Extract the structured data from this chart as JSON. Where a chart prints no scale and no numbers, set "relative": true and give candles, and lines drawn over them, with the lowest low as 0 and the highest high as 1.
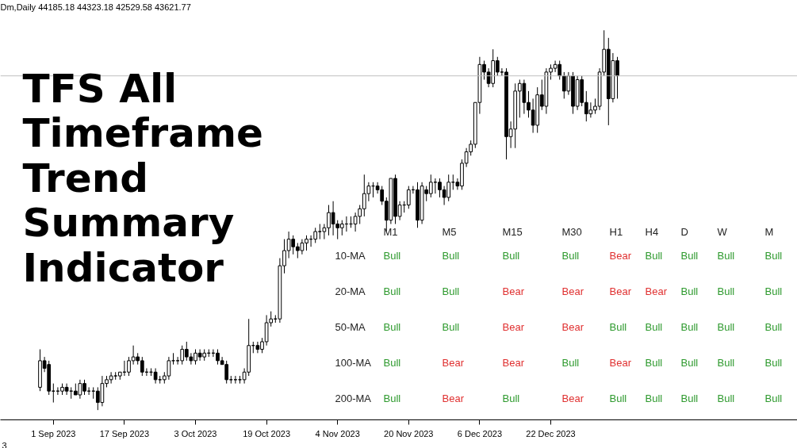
{
  "chart_data": [
    {
      "type": "candlestick",
      "title": "TFS All Timeframe Trend Summary Indicator",
      "relative": true,
      "grid": false,
      "annotations": [
        "Dm,Daily 44185.18 44323.18 42529.58 43621.77",
        "3"
      ],
      "ref_lines": [
        {
          "axis": "y",
          "value": 0.88,
          "color": "#c0c0c0"
        }
      ],
      "categories": [
        null,
        null,
        null,
        "1 Sep 2023",
        null,
        null,
        null,
        null,
        null,
        null,
        null,
        null,
        null,
        null,
        null,
        null,
        null,
        null,
        null,
        "17 Sep 2023",
        null,
        null,
        null,
        null,
        null,
        null,
        null,
        null,
        null,
        null,
        null,
        null,
        null,
        null,
        null,
        "3 Oct 2023",
        null,
        null,
        null,
        null,
        null,
        null,
        null,
        null,
        null,
        null,
        null,
        null,
        null,
        null,
        null,
        "19 Oct 2023",
        null,
        null,
        null,
        null,
        null,
        null,
        null,
        null,
        null,
        null,
        null,
        null,
        null,
        null,
        null,
        "4 Nov 2023",
        null,
        null,
        null,
        null,
        null,
        null,
        null,
        null,
        null,
        null,
        null,
        null,
        null,
        null,
        null,
        "20 Nov 2023",
        null,
        null,
        null,
        null,
        null,
        null,
        null,
        null,
        null,
        null,
        null,
        null,
        null,
        null,
        null,
        "6 Dec 2023",
        null,
        null,
        null,
        null,
        null,
        null,
        null,
        null,
        null,
        null,
        null,
        null,
        null,
        null,
        null,
        "22 Dec 2023",
        null,
        null,
        null,
        null,
        null,
        null,
        null,
        null,
        null,
        null,
        null,
        null,
        null,
        null,
        null
      ],
      "ohlc": [
        [
          0.06,
          0.16,
          0.05,
          0.13
        ],
        [
          0.13,
          0.14,
          0.1,
          0.11
        ],
        [
          0.12,
          0.13,
          0.04,
          0.05
        ],
        [
          0.05,
          0.07,
          0.02,
          0.05
        ],
        [
          0.05,
          0.06,
          0.04,
          0.05
        ],
        [
          0.05,
          0.07,
          0.04,
          0.06
        ],
        [
          0.06,
          0.07,
          0.04,
          0.05
        ],
        [
          0.05,
          0.06,
          0.03,
          0.05
        ],
        [
          0.05,
          0.07,
          0.04,
          0.04
        ],
        [
          0.04,
          0.08,
          0.03,
          0.07
        ],
        [
          0.07,
          0.08,
          0.04,
          0.05
        ],
        [
          0.05,
          0.06,
          0.04,
          0.05
        ],
        [
          0.05,
          0.06,
          0.03,
          0.05
        ],
        [
          0.05,
          0.06,
          0.0,
          0.02
        ],
        [
          0.02,
          0.09,
          0.01,
          0.07
        ],
        [
          0.07,
          0.09,
          0.06,
          0.08
        ],
        [
          0.08,
          0.1,
          0.07,
          0.09
        ],
        [
          0.09,
          0.1,
          0.08,
          0.09
        ],
        [
          0.09,
          0.1,
          0.08,
          0.1
        ],
        [
          0.1,
          0.13,
          0.09,
          0.1
        ],
        [
          0.1,
          0.14,
          0.09,
          0.13
        ],
        [
          0.13,
          0.17,
          0.12,
          0.14
        ],
        [
          0.14,
          0.15,
          0.12,
          0.13
        ],
        [
          0.13,
          0.14,
          0.09,
          0.1
        ],
        [
          0.1,
          0.11,
          0.09,
          0.1
        ],
        [
          0.1,
          0.11,
          0.09,
          0.1
        ],
        [
          0.1,
          0.11,
          0.07,
          0.08
        ],
        [
          0.08,
          0.09,
          0.07,
          0.08
        ],
        [
          0.08,
          0.1,
          0.07,
          0.09
        ],
        [
          0.09,
          0.14,
          0.08,
          0.13
        ],
        [
          0.13,
          0.15,
          0.12,
          0.13
        ],
        [
          0.13,
          0.14,
          0.12,
          0.13
        ],
        [
          0.13,
          0.17,
          0.12,
          0.16
        ],
        [
          0.16,
          0.18,
          0.13,
          0.14
        ],
        [
          0.14,
          0.15,
          0.12,
          0.13
        ],
        [
          0.13,
          0.16,
          0.12,
          0.15
        ],
        [
          0.15,
          0.16,
          0.13,
          0.14
        ],
        [
          0.14,
          0.16,
          0.13,
          0.15
        ],
        [
          0.15,
          0.16,
          0.14,
          0.15
        ],
        [
          0.15,
          0.16,
          0.14,
          0.15
        ],
        [
          0.15,
          0.16,
          0.12,
          0.13
        ],
        [
          0.13,
          0.14,
          0.12,
          0.12
        ],
        [
          0.12,
          0.13,
          0.07,
          0.08
        ],
        [
          0.08,
          0.09,
          0.07,
          0.08
        ],
        [
          0.08,
          0.09,
          0.07,
          0.08
        ],
        [
          0.08,
          0.09,
          0.07,
          0.08
        ],
        [
          0.08,
          0.11,
          0.07,
          0.1
        ],
        [
          0.1,
          0.24,
          0.09,
          0.17
        ],
        [
          0.17,
          0.18,
          0.15,
          0.17
        ],
        [
          0.17,
          0.18,
          0.15,
          0.16
        ],
        [
          0.16,
          0.19,
          0.15,
          0.18
        ],
        [
          0.18,
          0.25,
          0.17,
          0.23
        ],
        [
          0.23,
          0.26,
          0.22,
          0.24
        ],
        [
          0.24,
          0.25,
          0.23,
          0.24
        ],
        [
          0.24,
          0.4,
          0.23,
          0.38
        ],
        [
          0.38,
          0.45,
          0.36,
          0.42
        ],
        [
          0.42,
          0.47,
          0.4,
          0.45
        ],
        [
          0.45,
          0.46,
          0.41,
          0.43
        ],
        [
          0.43,
          0.44,
          0.4,
          0.42
        ],
        [
          0.42,
          0.45,
          0.41,
          0.44
        ],
        [
          0.44,
          0.46,
          0.42,
          0.45
        ],
        [
          0.45,
          0.46,
          0.43,
          0.45
        ],
        [
          0.45,
          0.48,
          0.44,
          0.47
        ],
        [
          0.47,
          0.49,
          0.45,
          0.47
        ],
        [
          0.47,
          0.49,
          0.45,
          0.48
        ],
        [
          0.48,
          0.54,
          0.46,
          0.52
        ],
        [
          0.52,
          0.55,
          0.46,
          0.49
        ],
        [
          0.49,
          0.5,
          0.45,
          0.48
        ],
        [
          0.48,
          0.5,
          0.46,
          0.49
        ],
        [
          0.49,
          0.51,
          0.47,
          0.49
        ],
        [
          0.49,
          0.51,
          0.48,
          0.49
        ],
        [
          0.49,
          0.52,
          0.47,
          0.51
        ],
        [
          0.51,
          0.54,
          0.49,
          0.53
        ],
        [
          0.53,
          0.62,
          0.51,
          0.57
        ],
        [
          0.57,
          0.6,
          0.55,
          0.59
        ],
        [
          0.59,
          0.6,
          0.56,
          0.59
        ],
        [
          0.59,
          0.6,
          0.57,
          0.58
        ],
        [
          0.58,
          0.59,
          0.54,
          0.55
        ],
        [
          0.55,
          0.56,
          0.47,
          0.5
        ],
        [
          0.5,
          0.61,
          0.49,
          0.61
        ],
        [
          0.61,
          0.62,
          0.49,
          0.51
        ],
        [
          0.51,
          0.55,
          0.5,
          0.54
        ],
        [
          0.54,
          0.55,
          0.52,
          0.54
        ],
        [
          0.54,
          0.59,
          0.53,
          0.58
        ],
        [
          0.58,
          0.59,
          0.57,
          0.58
        ],
        [
          0.58,
          0.6,
          0.48,
          0.5
        ],
        [
          0.5,
          0.6,
          0.49,
          0.59
        ],
        [
          0.58,
          0.59,
          0.55,
          0.57
        ],
        [
          0.57,
          0.62,
          0.56,
          0.6
        ],
        [
          0.6,
          0.61,
          0.57,
          0.6
        ],
        [
          0.6,
          0.61,
          0.56,
          0.58
        ],
        [
          0.58,
          0.59,
          0.54,
          0.56
        ],
        [
          0.56,
          0.62,
          0.55,
          0.6
        ],
        [
          0.6,
          0.62,
          0.58,
          0.6
        ],
        [
          0.6,
          0.61,
          0.58,
          0.59
        ],
        [
          0.59,
          0.66,
          0.58,
          0.65
        ],
        [
          0.65,
          0.69,
          0.64,
          0.68
        ],
        [
          0.68,
          0.71,
          0.67,
          0.7
        ],
        [
          0.7,
          0.81,
          0.69,
          0.81
        ],
        [
          0.81,
          0.93,
          0.78,
          0.91
        ],
        [
          0.91,
          0.92,
          0.87,
          0.89
        ],
        [
          0.89,
          0.9,
          0.85,
          0.86
        ],
        [
          0.86,
          0.95,
          0.85,
          0.92
        ],
        [
          0.92,
          0.93,
          0.88,
          0.89
        ],
        [
          0.89,
          0.9,
          0.88,
          0.89
        ],
        [
          0.89,
          0.9,
          0.66,
          0.72
        ],
        [
          0.72,
          0.76,
          0.69,
          0.74
        ],
        [
          0.74,
          0.86,
          0.69,
          0.84
        ],
        [
          0.84,
          0.87,
          0.77,
          0.86
        ],
        [
          0.86,
          0.87,
          0.78,
          0.81
        ],
        [
          0.81,
          0.84,
          0.77,
          0.79
        ],
        [
          0.79,
          0.82,
          0.73,
          0.75
        ],
        [
          0.75,
          0.85,
          0.73,
          0.83
        ],
        [
          0.83,
          0.87,
          0.79,
          0.8
        ],
        [
          0.8,
          0.9,
          0.78,
          0.89
        ],
        [
          0.89,
          0.91,
          0.87,
          0.9
        ],
        [
          0.9,
          0.92,
          0.89,
          0.91
        ],
        [
          0.91,
          0.92,
          0.87,
          0.88
        ],
        [
          0.88,
          0.89,
          0.82,
          0.84
        ],
        [
          0.84,
          0.89,
          0.83,
          0.88
        ],
        [
          0.88,
          0.89,
          0.78,
          0.8
        ],
        [
          0.8,
          0.88,
          0.79,
          0.87
        ],
        [
          0.87,
          0.88,
          0.8,
          0.81
        ],
        [
          0.81,
          0.84,
          0.76,
          0.78
        ],
        [
          0.78,
          0.81,
          0.77,
          0.79
        ],
        [
          0.79,
          0.82,
          0.78,
          0.8
        ],
        [
          0.8,
          0.9,
          0.79,
          0.89
        ],
        [
          0.89,
          1.0,
          0.88,
          0.95
        ],
        [
          0.95,
          0.98,
          0.75,
          0.82
        ],
        [
          0.82,
          0.94,
          0.81,
          0.92
        ],
        [
          0.92,
          0.93,
          0.82,
          0.88
        ]
      ]
    },
    {
      "type": "other",
      "categories": [
        "M1",
        "M5",
        "M15",
        "M30",
        "H1",
        "H4",
        "D",
        "W",
        "M"
      ],
      "y_categories": [
        "10-MA",
        "20-MA",
        "50-MA",
        "100-MA",
        "200-MA"
      ],
      "cell_labels": [
        [
          "Bull",
          "Bull",
          "Bull",
          "Bull",
          "Bear",
          "Bull",
          "Bull",
          "Bull",
          "Bull"
        ],
        [
          "Bull",
          "Bull",
          "Bear",
          "Bear",
          "Bear",
          "Bear",
          "Bull",
          "Bull",
          "Bull"
        ],
        [
          "Bull",
          "Bull",
          "Bear",
          "Bear",
          "Bull",
          "Bull",
          "Bull",
          "Bull",
          "Bull"
        ],
        [
          "Bull",
          "Bear",
          "Bear",
          "Bull",
          "Bear",
          "Bull",
          "Bull",
          "Bull",
          "Bull"
        ],
        [
          "Bull",
          "Bear",
          "Bull",
          "Bear",
          "Bull",
          "Bull",
          "Bull",
          "Bull",
          "Bull"
        ]
      ],
      "colors": [
        [
          "#2e9a2e",
          "#2e9a2e",
          "#2e9a2e",
          "#2e9a2e",
          "#e03030",
          "#2e9a2e",
          "#2e9a2e",
          "#2e9a2e",
          "#2e9a2e"
        ],
        [
          "#2e9a2e",
          "#2e9a2e",
          "#e03030",
          "#e03030",
          "#e03030",
          "#e03030",
          "#2e9a2e",
          "#2e9a2e",
          "#2e9a2e"
        ],
        [
          "#2e9a2e",
          "#2e9a2e",
          "#e03030",
          "#e03030",
          "#2e9a2e",
          "#2e9a2e",
          "#2e9a2e",
          "#2e9a2e",
          "#2e9a2e"
        ],
        [
          "#2e9a2e",
          "#e03030",
          "#e03030",
          "#2e9a2e",
          "#e03030",
          "#2e9a2e",
          "#2e9a2e",
          "#2e9a2e",
          "#2e9a2e"
        ],
        [
          "#2e9a2e",
          "#e03030",
          "#2e9a2e",
          "#e03030",
          "#2e9a2e",
          "#2e9a2e",
          "#2e9a2e",
          "#2e9a2e",
          "#2e9a2e"
        ]
      ]
    }
  ]
}
